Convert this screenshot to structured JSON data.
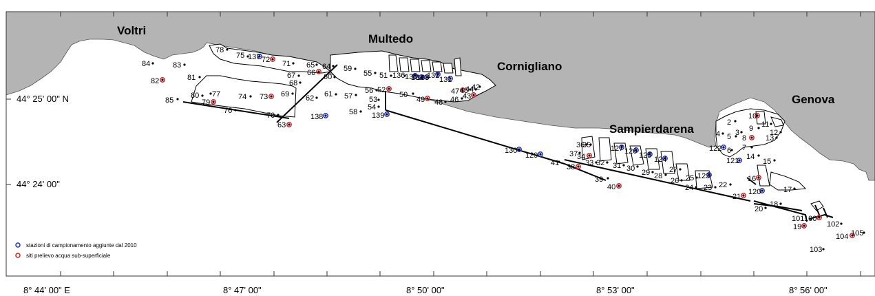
{
  "colors": {
    "land": "#b4b4b4",
    "water": "#ffffff",
    "blue_ring": "#1f2fcf",
    "red_ring": "#d62020",
    "dot": "#000000"
  },
  "places": {
    "voltri": "Voltri",
    "multedo": "Multedo",
    "cornigliano": "Cornigliano",
    "sampierdarena": "Sampierdarena",
    "genova": "Genova"
  },
  "axes": {
    "x_ticks": [
      "8° 44' 00\" E",
      "8° 47' 00\"",
      "8° 50' 00\"",
      "8° 53' 00\"",
      "8° 56' 00\""
    ],
    "y_ticks": [
      "44° 25' 00\" N",
      "44° 24' 00\""
    ]
  },
  "legend": {
    "blue": "stazioni di campionamento aggiunte dal 2010",
    "red": "siti prelievo acqua sub-superficiale"
  },
  "stations": [
    {
      "id": "84",
      "type": "plain"
    },
    {
      "id": "83",
      "type": "plain"
    },
    {
      "id": "82",
      "type": "red"
    },
    {
      "id": "81",
      "type": "plain"
    },
    {
      "id": "85",
      "type": "plain"
    },
    {
      "id": "80",
      "type": "plain"
    },
    {
      "id": "79",
      "type": "red"
    },
    {
      "id": "77",
      "type": "plain"
    },
    {
      "id": "76",
      "type": "plain"
    },
    {
      "id": "74",
      "type": "plain"
    },
    {
      "id": "73",
      "type": "red"
    },
    {
      "id": "78",
      "type": "plain"
    },
    {
      "id": "75",
      "type": "plain"
    },
    {
      "id": "137",
      "type": "blue"
    },
    {
      "id": "72",
      "type": "red"
    },
    {
      "id": "71",
      "type": "plain"
    },
    {
      "id": "69",
      "type": "plain"
    },
    {
      "id": "70",
      "type": "plain"
    },
    {
      "id": "63",
      "type": "red"
    },
    {
      "id": "67",
      "type": "plain"
    },
    {
      "id": "68",
      "type": "plain"
    },
    {
      "id": "65",
      "type": "plain"
    },
    {
      "id": "66",
      "type": "red"
    },
    {
      "id": "64",
      "type": "plain"
    },
    {
      "id": "60",
      "type": "plain"
    },
    {
      "id": "62",
      "type": "plain"
    },
    {
      "id": "61",
      "type": "plain"
    },
    {
      "id": "138",
      "type": "blue"
    },
    {
      "id": "59",
      "type": "plain"
    },
    {
      "id": "55",
      "type": "plain"
    },
    {
      "id": "51",
      "type": "plain"
    },
    {
      "id": "136",
      "type": "plain"
    },
    {
      "id": "135",
      "type": "blue"
    },
    {
      "id": "134",
      "type": "blue"
    },
    {
      "id": "133",
      "type": "blue"
    },
    {
      "id": "132",
      "type": "blue"
    },
    {
      "id": "131",
      "type": "blue"
    },
    {
      "id": "57",
      "type": "plain"
    },
    {
      "id": "56",
      "type": "plain"
    },
    {
      "id": "52",
      "type": "red"
    },
    {
      "id": "53",
      "type": "plain"
    },
    {
      "id": "54",
      "type": "plain"
    },
    {
      "id": "58",
      "type": "plain"
    },
    {
      "id": "139",
      "type": "blue"
    },
    {
      "id": "50",
      "type": "plain"
    },
    {
      "id": "49",
      "type": "red"
    },
    {
      "id": "48",
      "type": "plain"
    },
    {
      "id": "47",
      "type": "red"
    },
    {
      "id": "46",
      "type": "plain"
    },
    {
      "id": "45",
      "type": "plain"
    },
    {
      "id": "44",
      "type": "plain"
    },
    {
      "id": "43",
      "type": "red"
    },
    {
      "id": "42",
      "type": "plain"
    },
    {
      "id": "130",
      "type": "blue"
    },
    {
      "id": "129",
      "type": "blue"
    },
    {
      "id": "41",
      "type": "plain"
    },
    {
      "id": "38",
      "type": "red"
    },
    {
      "id": "37",
      "type": "plain"
    },
    {
      "id": "36",
      "type": "plain"
    },
    {
      "id": "35",
      "type": "plain"
    },
    {
      "id": "34",
      "type": "red"
    },
    {
      "id": "33",
      "type": "plain"
    },
    {
      "id": "32",
      "type": "plain"
    },
    {
      "id": "31",
      "type": "plain"
    },
    {
      "id": "39",
      "type": "plain"
    },
    {
      "id": "40",
      "type": "red"
    },
    {
      "id": "127",
      "type": "blue"
    },
    {
      "id": "126",
      "type": "blue"
    },
    {
      "id": "125",
      "type": "blue"
    },
    {
      "id": "124",
      "type": "blue"
    },
    {
      "id": "30",
      "type": "plain"
    },
    {
      "id": "29",
      "type": "plain"
    },
    {
      "id": "28",
      "type": "plain"
    },
    {
      "id": "27",
      "type": "plain"
    },
    {
      "id": "26",
      "type": "plain"
    },
    {
      "id": "25",
      "type": "plain"
    },
    {
      "id": "24",
      "type": "plain"
    },
    {
      "id": "123",
      "type": "blue"
    },
    {
      "id": "23",
      "type": "plain"
    },
    {
      "id": "22",
      "type": "plain"
    },
    {
      "id": "21",
      "type": "red"
    },
    {
      "id": "122",
      "type": "blue"
    },
    {
      "id": "121",
      "type": "blue"
    },
    {
      "id": "120",
      "type": "blue"
    },
    {
      "id": "6",
      "type": "plain"
    },
    {
      "id": "5",
      "type": "plain"
    },
    {
      "id": "4",
      "type": "plain"
    },
    {
      "id": "3",
      "type": "plain"
    },
    {
      "id": "2",
      "type": "plain"
    },
    {
      "id": "10",
      "type": "red"
    },
    {
      "id": "9",
      "type": "plain"
    },
    {
      "id": "8",
      "type": "red"
    },
    {
      "id": "7",
      "type": "plain"
    },
    {
      "id": "11",
      "type": "plain"
    },
    {
      "id": "12",
      "type": "plain"
    },
    {
      "id": "13",
      "type": "plain"
    },
    {
      "id": "14",
      "type": "plain"
    },
    {
      "id": "15",
      "type": "plain"
    },
    {
      "id": "16",
      "type": "red"
    },
    {
      "id": "17",
      "type": "plain"
    },
    {
      "id": "18",
      "type": "plain"
    },
    {
      "id": "20",
      "type": "plain"
    },
    {
      "id": "101",
      "type": "plain"
    },
    {
      "id": "100",
      "type": "red"
    },
    {
      "id": "19",
      "type": "red"
    },
    {
      "id": "102",
      "type": "plain"
    },
    {
      "id": "104",
      "type": "red"
    },
    {
      "id": "105",
      "type": "plain"
    },
    {
      "id": "103",
      "type": "plain"
    }
  ]
}
